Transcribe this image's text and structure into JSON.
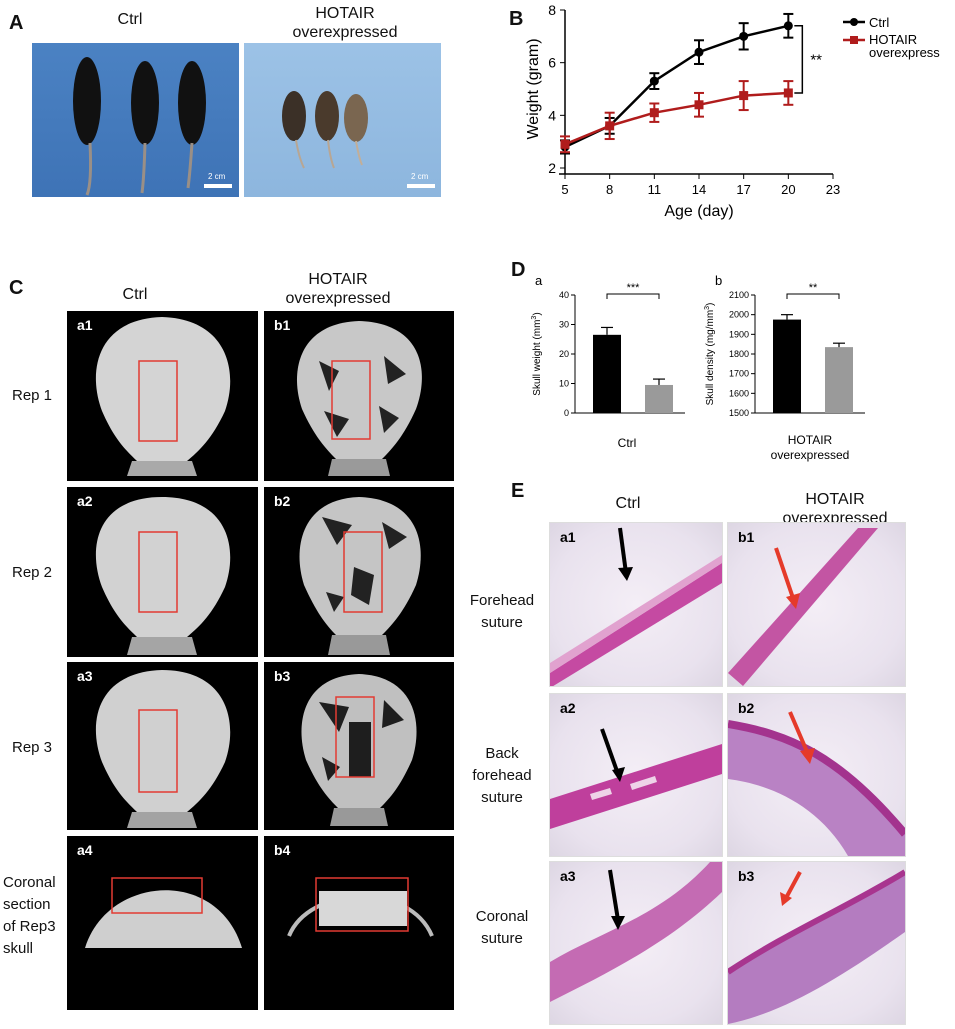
{
  "panel_letters": {
    "A": "A",
    "B": "B",
    "C": "C",
    "D": "D",
    "E": "E"
  },
  "groups": {
    "ctrl": "Ctrl",
    "hotair_line1": "HOTAIR",
    "hotair_line2": "overexpressed"
  },
  "panel_a": {
    "scale_label": "2 cm"
  },
  "panel_c": {
    "rows": {
      "rep1": "Rep 1",
      "rep2": "Rep 2",
      "rep3": "Rep 3",
      "coronal_lines": [
        "Coronal",
        "section",
        "of Rep3",
        "skull"
      ]
    },
    "ids": {
      "a1": "a1",
      "b1": "b1",
      "a2": "a2",
      "b2": "b2",
      "a3": "a3",
      "b3": "b3",
      "a4": "a4",
      "b4": "b4"
    }
  },
  "panel_e": {
    "rows": {
      "forehead": [
        "Forehead",
        "suture"
      ],
      "back": [
        "Back",
        "forehead",
        "suture"
      ],
      "coronal": [
        "Coronal",
        "suture"
      ]
    },
    "ids": {
      "a1": "a1",
      "b1": "b1",
      "a2": "a2",
      "b2": "b2",
      "a3": "a3",
      "b3": "b3"
    }
  },
  "colors": {
    "ctrl": "#000000",
    "hotair": "#b01c1c",
    "bar_ctrl": "#000000",
    "bar_hotair": "#9a9a9a",
    "arrow_ctrl": "#000000",
    "arrow_hotair": "#e53a2a",
    "roi_box": "#e23b32"
  },
  "chart_data": [
    {
      "id": "B",
      "type": "line",
      "xlabel": "Age (day)",
      "ylabel": "Weight (gram)",
      "xlim": [
        5,
        23
      ],
      "ylim": [
        2,
        8
      ],
      "xticks": [
        5,
        8,
        11,
        14,
        17,
        20,
        23
      ],
      "yticks": [
        2,
        4,
        6,
        8
      ],
      "legend_position": "top-right",
      "significance": "**",
      "series": [
        {
          "name": "Ctrl",
          "marker": "circle",
          "x": [
            5,
            8,
            11,
            14,
            17,
            20
          ],
          "y": [
            2.8,
            3.6,
            5.3,
            6.4,
            7.0,
            7.4
          ],
          "err": [
            0.25,
            0.3,
            0.3,
            0.45,
            0.5,
            0.45
          ]
        },
        {
          "name_lines": [
            "HOTAIR",
            "overexpressed"
          ],
          "marker": "square",
          "x": [
            5,
            8,
            11,
            14,
            17,
            20
          ],
          "y": [
            2.9,
            3.6,
            4.1,
            4.4,
            4.75,
            4.85
          ],
          "err": [
            0.3,
            0.5,
            0.35,
            0.45,
            0.55,
            0.45
          ]
        }
      ]
    },
    {
      "id": "D-a",
      "sub_label": "a",
      "type": "bar",
      "ylabel": "Skull weight",
      "yunit_base": "mm",
      "yunit_sup": "3",
      "ylim": [
        0,
        40
      ],
      "yticks": [
        0,
        10,
        20,
        30,
        40
      ],
      "categories": [
        "Ctrl",
        "HOTAIR overexpressed"
      ],
      "values": [
        26.5,
        9.5
      ],
      "errors": [
        2.5,
        2.0
      ],
      "significance": "***"
    },
    {
      "id": "D-b",
      "sub_label": "b",
      "type": "bar",
      "ylabel": "Skull density",
      "yunit_base": "mg/mm",
      "yunit_sup": "3",
      "ylim": [
        1500,
        2100
      ],
      "yticks": [
        1500,
        1600,
        1700,
        1800,
        1900,
        2000,
        2100
      ],
      "categories": [
        "Ctrl",
        "HOTAIR overexpressed"
      ],
      "values": [
        1975,
        1835
      ],
      "errors": [
        25,
        20
      ],
      "significance": "**"
    }
  ]
}
